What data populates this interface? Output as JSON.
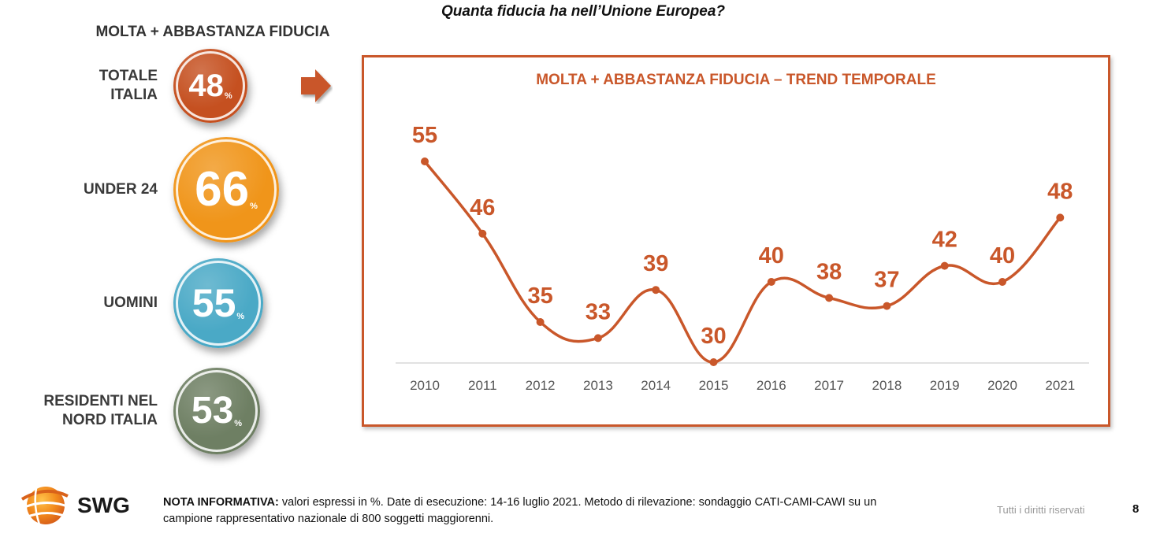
{
  "question": "Quanta fiducia ha nell’Unione Europea?",
  "left_heading": "MOLTA + ABBASTANZA FIDUCIA",
  "segments": [
    {
      "label": "TOTALE\nITALIA",
      "value": "48",
      "unit": "%",
      "color": "#c55020"
    },
    {
      "label": "UNDER 24",
      "value": "66",
      "unit": "%",
      "color": "#f0951a"
    },
    {
      "label": "UOMINI",
      "value": "55",
      "unit": "%",
      "color": "#4aa9c6"
    },
    {
      "label": "RESIDENTI NEL\nNORD ITALIA",
      "value": "53",
      "unit": "%",
      "color": "#6e7f63"
    }
  ],
  "chart_data": {
    "type": "line",
    "title": "MOLTA + ABBASTANZA FIDUCIA – TREND TEMPORALE",
    "x": [
      "2010",
      "2011",
      "2012",
      "2013",
      "2014",
      "2015",
      "2016",
      "2017",
      "2018",
      "2019",
      "2020",
      "2021"
    ],
    "values": [
      55,
      46,
      35,
      33,
      39,
      30,
      40,
      38,
      37,
      42,
      40,
      48
    ],
    "data_labels": true,
    "grid": false,
    "line_color": "#c9572a"
  },
  "footer": {
    "logo_text": "SWG",
    "note_label": "NOTA INFORMATIVA:",
    "note_text": " valori espressi in %. Date di esecuzione: 14-16 luglio 2021. Metodo di rilevazione: sondaggio CATI-CAMI-CAWI su un campione rappresentativo nazionale di 800 soggetti maggiorenni.",
    "rights": "Tutti i diritti riservati",
    "page": "8"
  }
}
